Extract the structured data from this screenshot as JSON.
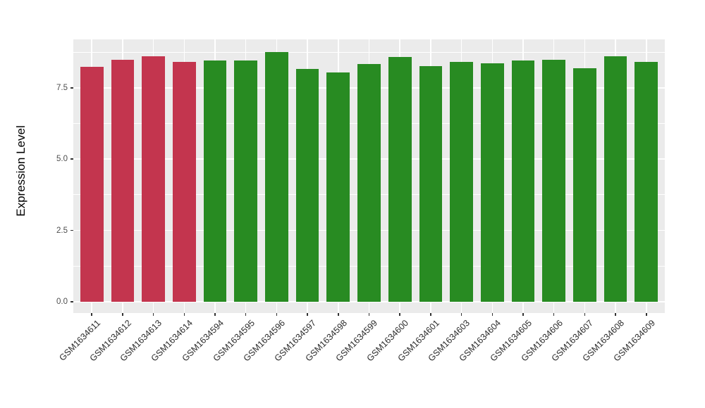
{
  "chart_data": {
    "type": "bar",
    "title": "",
    "xlabel": "",
    "ylabel": "Expression Level",
    "categories": [
      "GSM1634611",
      "GSM1634612",
      "GSM1634613",
      "GSM1634614",
      "GSM1634594",
      "GSM1634595",
      "GSM1634596",
      "GSM1634597",
      "GSM1634598",
      "GSM1634599",
      "GSM1634600",
      "GSM1634601",
      "GSM1634603",
      "GSM1634604",
      "GSM1634605",
      "GSM1634606",
      "GSM1634607",
      "GSM1634608",
      "GSM1634609"
    ],
    "values": [
      8.25,
      8.49,
      8.62,
      8.42,
      8.47,
      8.47,
      8.76,
      8.16,
      8.04,
      8.33,
      8.59,
      8.27,
      8.42,
      8.37,
      8.45,
      8.49,
      8.18,
      8.6,
      8.41
    ],
    "bar_colors": [
      "#C3354E",
      "#C3354E",
      "#C3354E",
      "#C3354E",
      "#288B22",
      "#288B22",
      "#288B22",
      "#288B22",
      "#288B22",
      "#288B22",
      "#288B22",
      "#288B22",
      "#288B22",
      "#288B22",
      "#288B22",
      "#288B22",
      "#288B22",
      "#288B22",
      "#288B22"
    ],
    "group_colors": {
      "highlighted_samples": "#C3354E",
      "other_samples": "#288B22"
    },
    "ylim": [
      -0.4,
      9.2
    ],
    "yticks": {
      "values": [
        0.0,
        2.5,
        5.0,
        7.5
      ],
      "labels": [
        "0.0",
        "2.5",
        "5.0",
        "7.5"
      ]
    },
    "minor_gridlines": [
      1.25,
      3.75,
      6.25,
      8.75
    ],
    "grid": true,
    "legend_position": "none",
    "panel_bg": "#EBEBEB",
    "grid_color": "#FFFFFF",
    "axis_tick_color": "#333333"
  }
}
